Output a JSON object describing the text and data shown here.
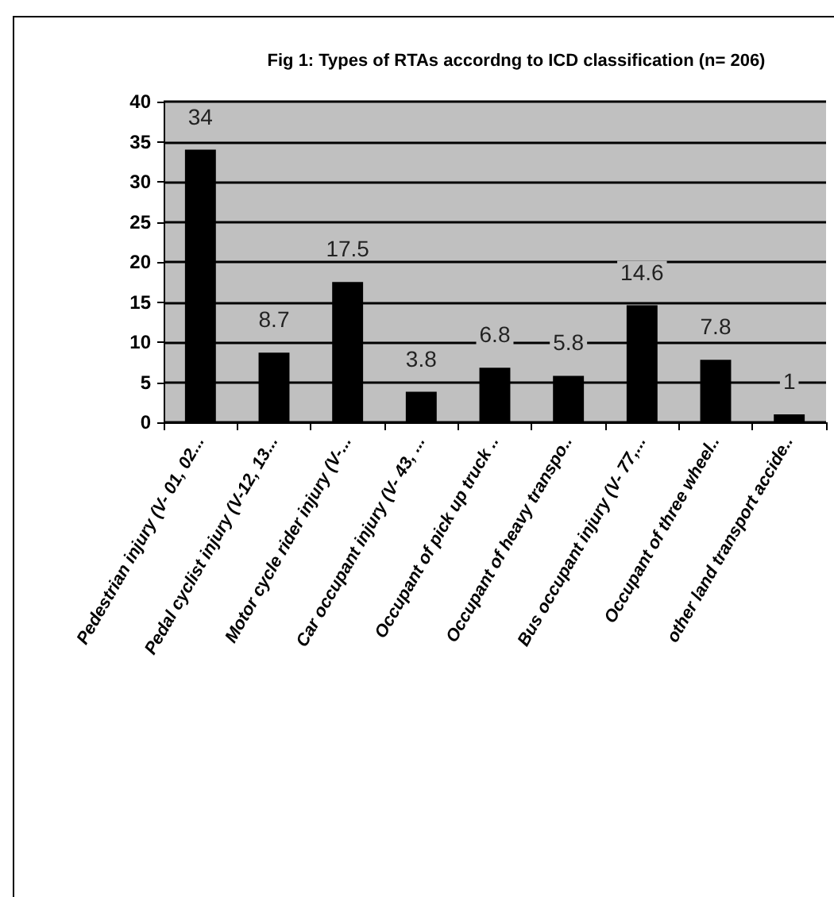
{
  "chart_data": {
    "type": "bar",
    "title": "Fig 1: Types of RTAs accordng to ICD classification (n= 206)",
    "categories": [
      "Pedestrian injury (V- 01, 02...",
      "Pedal cyclist injury (V-12, 13...",
      "Motor cycle rider injury (V-...",
      "Car occupant injury (V- 43, ...",
      "Occupant of pick up truck ..",
      "Occupant of heavy transpo..",
      "Bus occupant injury (V- 77,...",
      "Occupant of three wheel..",
      "other land transport accide.."
    ],
    "values": [
      34,
      8.7,
      17.5,
      3.8,
      6.8,
      5.8,
      14.6,
      7.8,
      1
    ],
    "color": "#000000",
    "ylim": [
      0,
      40
    ],
    "yticks": [
      0,
      5,
      10,
      15,
      20,
      25,
      30,
      35,
      40
    ],
    "grid": "y",
    "data_labels": true
  }
}
